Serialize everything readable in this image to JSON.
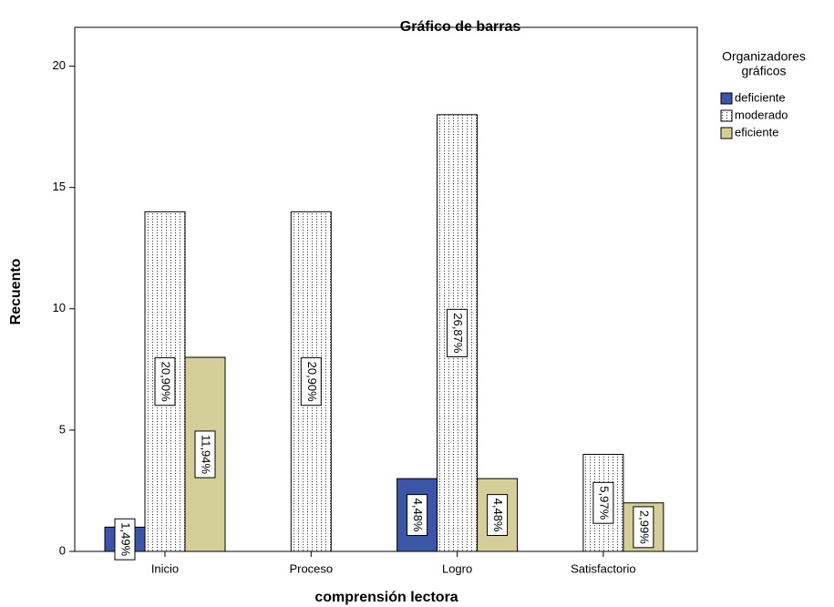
{
  "chart_data": {
    "type": "bar",
    "title": "Gráfico de barras",
    "x_label": "comprensión lectora",
    "y_label": "Recuento",
    "legend_title": [
      "Organizadores",
      "gráficos"
    ],
    "categories": [
      "Inicio",
      "Proceso",
      "Logro",
      "Satisfactorio"
    ],
    "series": [
      {
        "name": "deficiente",
        "color": "#3d55a6",
        "values": [
          1,
          null,
          3,
          null
        ],
        "percent_labels": [
          "1,49%",
          null,
          "4,48%",
          null
        ]
      },
      {
        "name": "moderado",
        "color": "#ffffff",
        "pattern": "dotted",
        "values": [
          14,
          14,
          18,
          4
        ],
        "percent_labels": [
          "20,90%",
          "20,90%",
          "26,87%",
          "5,97%"
        ]
      },
      {
        "name": "eficiente",
        "color": "#d4cf9a",
        "values": [
          8,
          null,
          3,
          2
        ],
        "percent_labels": [
          "11,94%",
          null,
          "4,48%",
          "2,99%"
        ]
      }
    ],
    "ylim": [
      0,
      21.6
    ],
    "yticks": [
      0,
      5,
      10,
      15,
      20
    ]
  }
}
